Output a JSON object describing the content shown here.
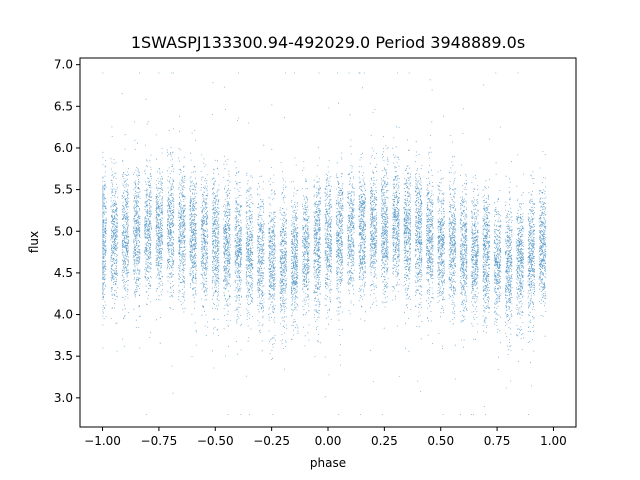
{
  "chart_data": {
    "type": "scatter",
    "title": "1SWASPJ133300.94-492029.0 Period 3948889.0s",
    "xlabel": "phase",
    "ylabel": "flux",
    "xlim": [
      -1.1,
      1.1
    ],
    "ylim": [
      2.65,
      7.08
    ],
    "x_ticks": [
      -1.0,
      -0.75,
      -0.5,
      -0.25,
      0.0,
      0.25,
      0.5,
      0.75,
      1.0
    ],
    "x_tick_labels": [
      "−1.00",
      "−0.75",
      "−0.50",
      "−0.25",
      "0.00",
      "0.25",
      "0.50",
      "0.75",
      "1.00"
    ],
    "y_ticks": [
      3.0,
      3.5,
      4.0,
      4.5,
      5.0,
      5.5,
      6.0,
      6.5,
      7.0
    ],
    "y_tick_labels": [
      "3.0",
      "3.5",
      "4.0",
      "4.5",
      "5.0",
      "5.5",
      "6.0",
      "6.5",
      "7.0"
    ],
    "grid": false,
    "point_color": "#1f77b4",
    "series": [
      {
        "profile": {
          "phase": [
            -1.0,
            -0.9,
            -0.8,
            -0.7,
            -0.6,
            -0.5,
            -0.4,
            -0.3,
            -0.2,
            -0.1,
            0.0,
            0.1,
            0.2,
            0.3,
            0.4,
            0.5,
            0.6,
            0.7,
            0.8,
            0.9,
            1.0
          ],
          "median_flux": [
            4.9,
            4.95,
            5.0,
            5.05,
            4.95,
            4.85,
            4.75,
            4.7,
            4.6,
            4.75,
            4.9,
            4.95,
            5.0,
            5.05,
            4.95,
            4.85,
            4.75,
            4.7,
            4.6,
            4.75,
            4.9
          ],
          "scatter_sigma": 0.38
        },
        "point_count": 16000,
        "flux_range": [
          2.8,
          6.9
        ]
      }
    ]
  }
}
